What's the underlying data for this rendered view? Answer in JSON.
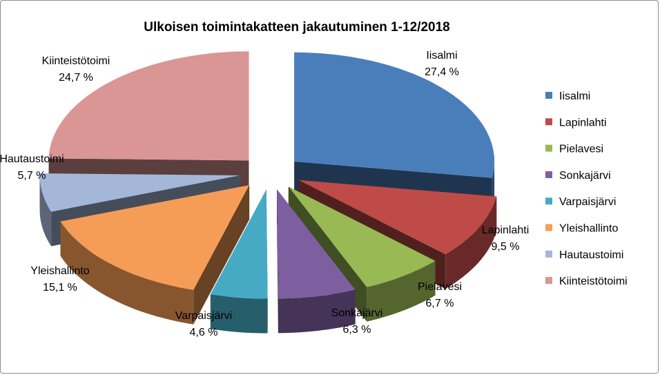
{
  "chart_data": {
    "type": "pie",
    "title": "Ulkoisen toimintakatteen jakautuminen 1-12/2018",
    "legend_position": "right",
    "exploded": true,
    "three_d": true,
    "slices": [
      {
        "name": "Iisalmi",
        "value": 27.4,
        "label": "27,4 %",
        "color": "#4a7ebb"
      },
      {
        "name": "Lapinlahti",
        "value": 9.5,
        "label": "9,5 %",
        "color": "#be4b48"
      },
      {
        "name": "Pielavesi",
        "value": 6.7,
        "label": "6,7 %",
        "color": "#98b954"
      },
      {
        "name": "Sonkajärvi",
        "value": 6.3,
        "label": "6,3 %",
        "color": "#7d5fa0"
      },
      {
        "name": "Varpaisjärvi",
        "value": 4.6,
        "label": "4,6 %",
        "color": "#46aac5"
      },
      {
        "name": "Yleishallinto",
        "value": 15.1,
        "label": "15,1 %",
        "color": "#f59d56"
      },
      {
        "name": "Hautaustoimi",
        "value": 5.7,
        "label": "5,7 %",
        "color": "#a5b7d8"
      },
      {
        "name": "Kiinteistötoimi",
        "value": 24.7,
        "label": "24,7 %",
        "color": "#d99694"
      }
    ]
  }
}
